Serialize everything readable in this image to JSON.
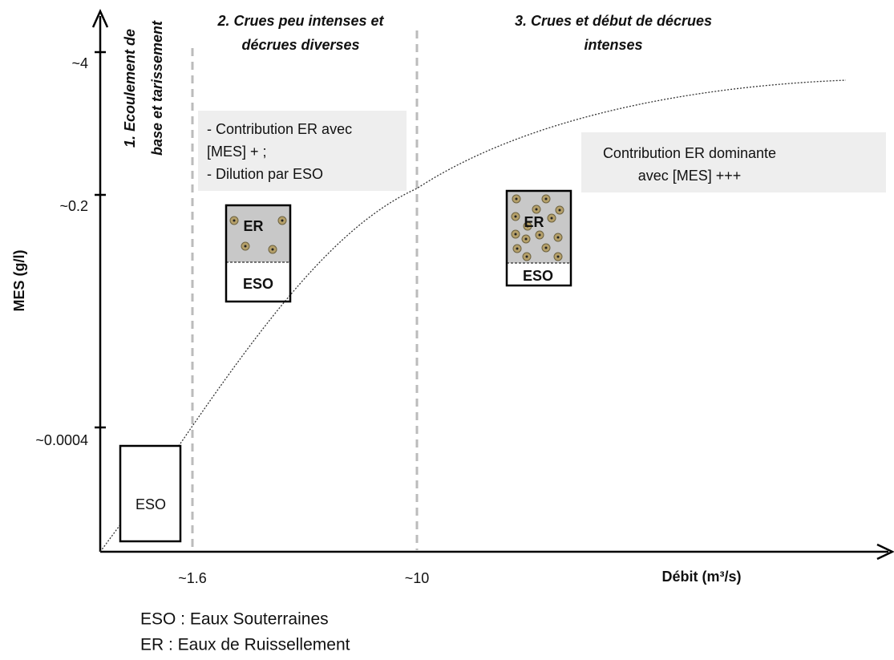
{
  "axes": {
    "y_label": "MES (g/l)",
    "x_label": "Débit (m³/s)",
    "y_ticks": [
      "~4",
      "~0.2",
      "~0.0004"
    ],
    "x_ticks": [
      "~1.6",
      "~10"
    ]
  },
  "zones": [
    {
      "title": [
        "1. Ecoulement de",
        "base et tarissement"
      ]
    },
    {
      "title": [
        "2. Crues peu intenses et",
        "décrues diverses"
      ],
      "note": [
        "- Contribution  ER avec",
        "[MES] + ;",
        "- Dilution par ESO"
      ]
    },
    {
      "title": [
        "3. Crues et début de décrues",
        "intenses"
      ],
      "note": [
        "Contribution ER dominante",
        "avec [MES] +++"
      ]
    }
  ],
  "boxes": [
    {
      "label": "ESO"
    },
    {
      "top": "ER",
      "bottom": "ESO"
    },
    {
      "top": "ER",
      "bottom": "ESO"
    }
  ],
  "legend": [
    "ESO : Eaux Souterraines",
    "ER : Eaux de Ruissellement"
  ]
}
